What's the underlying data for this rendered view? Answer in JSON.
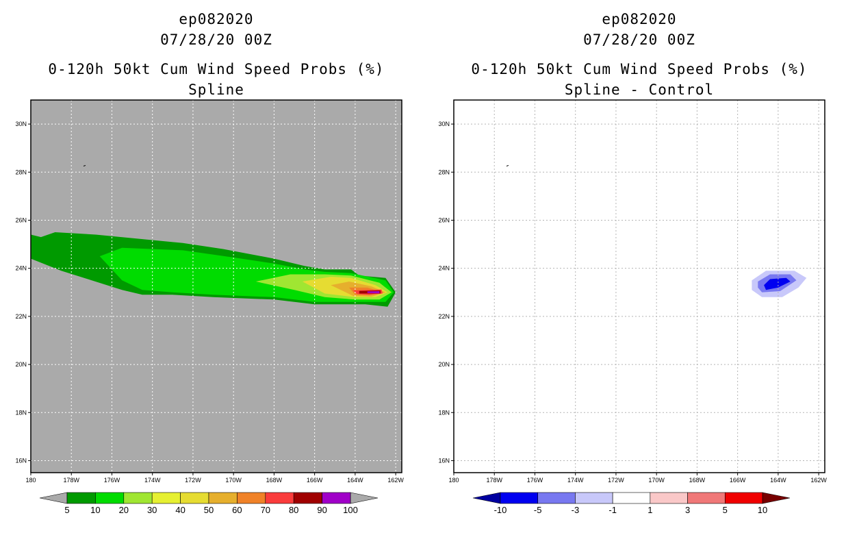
{
  "chart_data": [
    {
      "type": "heatmap",
      "title_lines": [
        "ep082020",
        "07/28/20 00Z",
        "0-120h 50kt Cum Wind Speed Probs (%)",
        "Spline"
      ],
      "x_ticks": [
        "180",
        "178W",
        "176W",
        "174W",
        "172W",
        "170W",
        "168W",
        "166W",
        "164W",
        "162W"
      ],
      "y_ticks": [
        "30N",
        "28N",
        "26N",
        "24N",
        "22N",
        "20N",
        "18N",
        "16N"
      ],
      "xlim_lon": [
        -180,
        -161.7
      ],
      "ylim_lat": [
        15.5,
        31
      ],
      "background_color": "#aaaaaa",
      "contours": [
        {
          "level": 5,
          "color": "#009a00",
          "points": [
            [
              -180,
              25.4
            ],
            [
              -179.5,
              25.3
            ],
            [
              -178.8,
              25.5
            ],
            [
              -176.8,
              25.4
            ],
            [
              -172.5,
              25.05
            ],
            [
              -170.5,
              24.8
            ],
            [
              -168,
              24.4
            ],
            [
              -166.5,
              24.1
            ],
            [
              -165.5,
              23.95
            ],
            [
              -164.2,
              23.95
            ],
            [
              -163.8,
              23.7
            ],
            [
              -162.5,
              23.6
            ],
            [
              -162,
              23.0
            ],
            [
              -162.4,
              22.4
            ],
            [
              -163.5,
              22.5
            ],
            [
              -166,
              22.5
            ],
            [
              -168,
              22.7
            ],
            [
              -171,
              22.8
            ],
            [
              -173,
              22.9
            ],
            [
              -174.5,
              22.9
            ],
            [
              -175.5,
              23.1
            ],
            [
              -177,
              23.5
            ],
            [
              -178.5,
              23.9
            ],
            [
              -180,
              24.4
            ]
          ]
        },
        {
          "level": 10,
          "color": "#00dc00",
          "points": [
            [
              -176.6,
              24.5
            ],
            [
              -175.5,
              24.85
            ],
            [
              -172.5,
              24.75
            ],
            [
              -170,
              24.45
            ],
            [
              -168,
              24.2
            ],
            [
              -166.5,
              23.95
            ],
            [
              -165.5,
              23.85
            ],
            [
              -164.2,
              23.8
            ],
            [
              -162.5,
              23.5
            ],
            [
              -162.1,
              23.0
            ],
            [
              -162.5,
              22.6
            ],
            [
              -163.5,
              22.6
            ],
            [
              -166,
              22.6
            ],
            [
              -168,
              22.8
            ],
            [
              -171,
              22.9
            ],
            [
              -173,
              23.0
            ],
            [
              -174.5,
              23.1
            ],
            [
              -175.5,
              23.5
            ]
          ]
        },
        {
          "level": 20,
          "color": "#a0e632",
          "points": [
            [
              -168.9,
              23.45
            ],
            [
              -167.2,
              23.75
            ],
            [
              -165.5,
              23.75
            ],
            [
              -164.2,
              23.7
            ],
            [
              -162.8,
              23.4
            ],
            [
              -162.2,
              23.0
            ],
            [
              -162.8,
              22.7
            ],
            [
              -164,
              22.7
            ],
            [
              -165.5,
              22.8
            ],
            [
              -167,
              23.1
            ]
          ]
        },
        {
          "level": 30,
          "color": "#e6dc32",
          "points": [
            [
              -166.6,
              23.45
            ],
            [
              -165.2,
              23.65
            ],
            [
              -164.2,
              23.6
            ],
            [
              -163,
              23.3
            ],
            [
              -162.4,
              23.0
            ],
            [
              -163,
              22.8
            ],
            [
              -164,
              22.8
            ],
            [
              -165.5,
              22.95
            ]
          ]
        },
        {
          "level": 40,
          "color": "#e6af2d",
          "points": [
            [
              -165.2,
              23.3
            ],
            [
              -164.3,
              23.45
            ],
            [
              -163.2,
              23.25
            ],
            [
              -162.5,
              23.0
            ],
            [
              -163.2,
              22.82
            ],
            [
              -164.1,
              22.85
            ]
          ]
        },
        {
          "level": 60,
          "color": "#f08228",
          "points": [
            [
              -164.3,
              23.2
            ],
            [
              -163.4,
              23.2
            ],
            [
              -162.6,
              23.0
            ],
            [
              -163.3,
              22.88
            ],
            [
              -164.0,
              22.9
            ]
          ]
        },
        {
          "level": 70,
          "color": "#fa3c3c",
          "points": [
            [
              -164.1,
              23.08
            ],
            [
              -162.7,
              23.12
            ],
            [
              -162.65,
              22.95
            ],
            [
              -163.3,
              22.9
            ],
            [
              -163.9,
              22.93
            ]
          ]
        },
        {
          "level": 80,
          "color": "#a00000",
          "points": [
            [
              -163.8,
              23.06
            ],
            [
              -162.75,
              23.08
            ],
            [
              -162.75,
              22.95
            ],
            [
              -163.8,
              22.95
            ]
          ]
        },
        {
          "level": 90,
          "color": "#a000c8",
          "points": [
            [
              -163.4,
              23.04
            ],
            [
              -162.8,
              23.05
            ],
            [
              -162.8,
              22.96
            ],
            [
              -163.4,
              22.97
            ]
          ]
        }
      ],
      "colorbar": {
        "levels": [
          "5",
          "10",
          "20",
          "30",
          "40",
          "50",
          "60",
          "70",
          "80",
          "90",
          "100"
        ],
        "colors": [
          "#009a00",
          "#00dc00",
          "#a0e632",
          "#e6f032",
          "#e6dc32",
          "#e6af2d",
          "#f08228",
          "#fa3c3c",
          "#a00000",
          "#a000c8"
        ],
        "under_color": "#aaaaaa",
        "over_color": "#aaaaaa"
      }
    },
    {
      "type": "heatmap",
      "title_lines": [
        "ep082020",
        "07/28/20 00Z",
        "0-120h 50kt Cum Wind Speed Probs (%)",
        "Spline - Control"
      ],
      "x_ticks": [
        "180",
        "178W",
        "176W",
        "174W",
        "172W",
        "170W",
        "168W",
        "166W",
        "164W",
        "162W"
      ],
      "y_ticks": [
        "30N",
        "28N",
        "26N",
        "24N",
        "22N",
        "20N",
        "18N",
        "16N"
      ],
      "xlim_lon": [
        -180,
        -161.7
      ],
      "ylim_lat": [
        15.5,
        31
      ],
      "background_color": "#ffffff",
      "grid": true,
      "contours": [
        {
          "level": -1,
          "color": "#c8c8fa",
          "points": [
            [
              -165.3,
              23.5
            ],
            [
              -164.6,
              23.9
            ],
            [
              -163.2,
              23.9
            ],
            [
              -162.6,
              23.6
            ],
            [
              -163,
              23.2
            ],
            [
              -163.8,
              22.8
            ],
            [
              -164.8,
              22.8
            ],
            [
              -165.3,
              23.1
            ]
          ]
        },
        {
          "level": -3,
          "color": "#7878f0",
          "points": [
            [
              -165,
              23.45
            ],
            [
              -164.4,
              23.75
            ],
            [
              -163.4,
              23.75
            ],
            [
              -163.1,
              23.5
            ],
            [
              -163.9,
              23.05
            ],
            [
              -164.8,
              23.0
            ],
            [
              -165,
              23.2
            ]
          ]
        },
        {
          "level": -5,
          "color": "#0000f0",
          "points": [
            [
              -164.7,
              23.3
            ],
            [
              -164.4,
              23.55
            ],
            [
              -163.6,
              23.6
            ],
            [
              -163.4,
              23.45
            ],
            [
              -164,
              23.2
            ],
            [
              -164.6,
              23.1
            ]
          ]
        }
      ],
      "colorbar": {
        "levels": [
          "-10",
          "-5",
          "-3",
          "-1",
          "1",
          "3",
          "5",
          "10"
        ],
        "colors": [
          "#0000f0",
          "#7878f0",
          "#c8c8fa",
          "#ffffff",
          "#fac8c8",
          "#f07878",
          "#f00000"
        ],
        "under_color": "#0000a0",
        "over_color": "#780000"
      }
    }
  ]
}
